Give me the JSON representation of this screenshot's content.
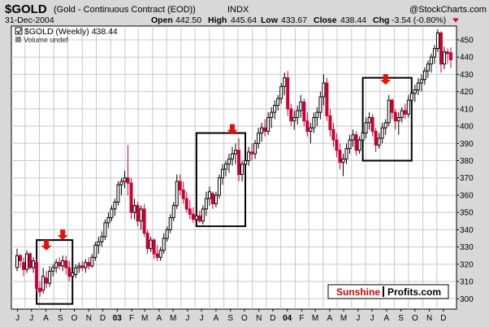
{
  "header": {
    "symbol": "$GOLD",
    "description": "(Gold - Continuous Contract (EOD))",
    "exchange": "INDX",
    "date": "31-Dec-2004",
    "watermark": "@StockCharts.com",
    "open_label": "Open",
    "open_value": "442.50",
    "high_label": "High",
    "high_value": "445.64",
    "low_label": "Low",
    "low_value": "433.67",
    "close_label": "Close",
    "close_value": "438.44",
    "chg_label": "Chg",
    "chg_value": "-3.54 (-0.80%)"
  },
  "legend": {
    "series": "$GOLD (Weekly) 438.44",
    "volume": "Volume undef"
  },
  "brand": {
    "part1": "Sunshine",
    "part2": "Profits.com"
  },
  "colors": {
    "up": "#000000",
    "down": "#cc0033",
    "grid": "#c8c8c8",
    "arrow": "#e8100a",
    "frame": "#000000",
    "background": "#d8d8d8",
    "plot_bg": "#ffffff"
  },
  "chart_data": {
    "type": "candlestick",
    "title": "$GOLD (Weekly) 438.44",
    "timeframe": "weekly",
    "date_range": [
      "2002-06-14",
      "2004-12-31"
    ],
    "y_axis_side": "right",
    "ylim": [
      294,
      458
    ],
    "yticks": [
      300,
      310,
      320,
      330,
      340,
      350,
      360,
      370,
      380,
      390,
      400,
      410,
      420,
      430,
      440,
      450
    ],
    "grid": true,
    "x_tick_labels": [
      "J",
      "J",
      "A",
      "S",
      "O",
      "N",
      "D",
      "03",
      "F",
      "M",
      "A",
      "M",
      "J",
      "J",
      "A",
      "S",
      "O",
      "N",
      "D",
      "04",
      "F",
      "M",
      "A",
      "M",
      "J",
      "J",
      "A",
      "S",
      "O",
      "N",
      "D"
    ],
    "candles": [
      {
        "date": "2002-06-14",
        "open": 318,
        "high": 329,
        "low": 316,
        "close": 325
      },
      {
        "date": "2002-06-21",
        "open": 325,
        "high": 326,
        "low": 318,
        "close": 322
      },
      {
        "date": "2002-06-28",
        "open": 321,
        "high": 324,
        "low": 313,
        "close": 317
      },
      {
        "date": "2002-07-05",
        "open": 317,
        "high": 328,
        "low": 315,
        "close": 326
      },
      {
        "date": "2002-07-12",
        "open": 326,
        "high": 327,
        "low": 317,
        "close": 318
      },
      {
        "date": "2002-07-19",
        "open": 318,
        "high": 324,
        "low": 315,
        "close": 322
      },
      {
        "date": "2002-07-26",
        "open": 321,
        "high": 323,
        "low": 304,
        "close": 306
      },
      {
        "date": "2002-08-02",
        "open": 306,
        "high": 310,
        "low": 301,
        "close": 304
      },
      {
        "date": "2002-08-09",
        "open": 305,
        "high": 318,
        "low": 303,
        "close": 313
      },
      {
        "date": "2002-08-16",
        "open": 312,
        "high": 316,
        "low": 306,
        "close": 309
      },
      {
        "date": "2002-08-23",
        "open": 309,
        "high": 319,
        "low": 307,
        "close": 316
      },
      {
        "date": "2002-08-30",
        "open": 316,
        "high": 320,
        "low": 313,
        "close": 318
      },
      {
        "date": "2002-09-06",
        "open": 318,
        "high": 323,
        "low": 315,
        "close": 321
      },
      {
        "date": "2002-09-13",
        "open": 321,
        "high": 324,
        "low": 317,
        "close": 319
      },
      {
        "date": "2002-09-20",
        "open": 319,
        "high": 325,
        "low": 316,
        "close": 322
      },
      {
        "date": "2002-09-27",
        "open": 322,
        "high": 325,
        "low": 314,
        "close": 318
      },
      {
        "date": "2002-10-04",
        "open": 318,
        "high": 322,
        "low": 310,
        "close": 313
      },
      {
        "date": "2002-10-11",
        "open": 313,
        "high": 317,
        "low": 309,
        "close": 315
      },
      {
        "date": "2002-10-18",
        "open": 314,
        "high": 320,
        "low": 312,
        "close": 318
      },
      {
        "date": "2002-10-25",
        "open": 318,
        "high": 321,
        "low": 315,
        "close": 319
      },
      {
        "date": "2002-11-01",
        "open": 319,
        "high": 322,
        "low": 316,
        "close": 318
      },
      {
        "date": "2002-11-08",
        "open": 318,
        "high": 323,
        "low": 315,
        "close": 321
      },
      {
        "date": "2002-11-15",
        "open": 321,
        "high": 324,
        "low": 317,
        "close": 319
      },
      {
        "date": "2002-11-22",
        "open": 319,
        "high": 326,
        "low": 318,
        "close": 324
      },
      {
        "date": "2002-11-29",
        "open": 324,
        "high": 333,
        "low": 322,
        "close": 331
      },
      {
        "date": "2002-12-06",
        "open": 331,
        "high": 336,
        "low": 326,
        "close": 333
      },
      {
        "date": "2002-12-13",
        "open": 333,
        "high": 339,
        "low": 330,
        "close": 336
      },
      {
        "date": "2002-12-20",
        "open": 336,
        "high": 346,
        "low": 334,
        "close": 344
      },
      {
        "date": "2002-12-27",
        "open": 344,
        "high": 350,
        "low": 341,
        "close": 347
      },
      {
        "date": "2003-01-03",
        "open": 347,
        "high": 354,
        "low": 345,
        "close": 352
      },
      {
        "date": "2003-01-10",
        "open": 352,
        "high": 358,
        "low": 348,
        "close": 356
      },
      {
        "date": "2003-01-17",
        "open": 356,
        "high": 368,
        "low": 354,
        "close": 366
      },
      {
        "date": "2003-01-24",
        "open": 366,
        "high": 370,
        "low": 360,
        "close": 368
      },
      {
        "date": "2003-01-31",
        "open": 368,
        "high": 374,
        "low": 364,
        "close": 370
      },
      {
        "date": "2003-02-07",
        "open": 370,
        "high": 389,
        "low": 360,
        "close": 367
      },
      {
        "date": "2003-02-14",
        "open": 367,
        "high": 370,
        "low": 346,
        "close": 350
      },
      {
        "date": "2003-02-21",
        "open": 350,
        "high": 358,
        "low": 346,
        "close": 354
      },
      {
        "date": "2003-02-28",
        "open": 354,
        "high": 356,
        "low": 342,
        "close": 345
      },
      {
        "date": "2003-03-07",
        "open": 345,
        "high": 354,
        "low": 340,
        "close": 352
      },
      {
        "date": "2003-03-14",
        "open": 352,
        "high": 355,
        "low": 336,
        "close": 338
      },
      {
        "date": "2003-03-21",
        "open": 338,
        "high": 340,
        "low": 326,
        "close": 329
      },
      {
        "date": "2003-03-28",
        "open": 329,
        "high": 336,
        "low": 327,
        "close": 334
      },
      {
        "date": "2003-04-04",
        "open": 334,
        "high": 335,
        "low": 323,
        "close": 326
      },
      {
        "date": "2003-04-11",
        "open": 326,
        "high": 331,
        "low": 322,
        "close": 324
      },
      {
        "date": "2003-04-18",
        "open": 324,
        "high": 330,
        "low": 322,
        "close": 328
      },
      {
        "date": "2003-04-25",
        "open": 328,
        "high": 338,
        "low": 326,
        "close": 335
      },
      {
        "date": "2003-05-02",
        "open": 335,
        "high": 342,
        "low": 333,
        "close": 340
      },
      {
        "date": "2003-05-09",
        "open": 340,
        "high": 349,
        "low": 338,
        "close": 347
      },
      {
        "date": "2003-05-16",
        "open": 347,
        "high": 356,
        "low": 345,
        "close": 354
      },
      {
        "date": "2003-05-23",
        "open": 354,
        "high": 372,
        "low": 352,
        "close": 368
      },
      {
        "date": "2003-05-30",
        "open": 368,
        "high": 372,
        "low": 360,
        "close": 363
      },
      {
        "date": "2003-06-06",
        "open": 363,
        "high": 368,
        "low": 355,
        "close": 358
      },
      {
        "date": "2003-06-13",
        "open": 358,
        "high": 362,
        "low": 350,
        "close": 352
      },
      {
        "date": "2003-06-20",
        "open": 352,
        "high": 357,
        "low": 346,
        "close": 349
      },
      {
        "date": "2003-06-27",
        "open": 349,
        "high": 353,
        "low": 344,
        "close": 346
      },
      {
        "date": "2003-07-04",
        "open": 346,
        "high": 350,
        "low": 343,
        "close": 348
      },
      {
        "date": "2003-07-11",
        "open": 348,
        "high": 351,
        "low": 344,
        "close": 345
      },
      {
        "date": "2003-07-18",
        "open": 345,
        "high": 354,
        "low": 343,
        "close": 352
      },
      {
        "date": "2003-07-25",
        "open": 352,
        "high": 362,
        "low": 348,
        "close": 358
      },
      {
        "date": "2003-08-01",
        "open": 358,
        "high": 365,
        "low": 354,
        "close": 362
      },
      {
        "date": "2003-08-08",
        "open": 361,
        "high": 362,
        "low": 352,
        "close": 355
      },
      {
        "date": "2003-08-15",
        "open": 355,
        "high": 362,
        "low": 353,
        "close": 360
      },
      {
        "date": "2003-08-22",
        "open": 360,
        "high": 372,
        "low": 358,
        "close": 370
      },
      {
        "date": "2003-08-29",
        "open": 370,
        "high": 378,
        "low": 366,
        "close": 375
      },
      {
        "date": "2003-09-05",
        "open": 375,
        "high": 380,
        "low": 371,
        "close": 378
      },
      {
        "date": "2003-09-12",
        "open": 378,
        "high": 384,
        "low": 373,
        "close": 381
      },
      {
        "date": "2003-09-19",
        "open": 381,
        "high": 388,
        "low": 377,
        "close": 384
      },
      {
        "date": "2003-09-26",
        "open": 384,
        "high": 390,
        "low": 378,
        "close": 386
      },
      {
        "date": "2003-10-03",
        "open": 386,
        "high": 393,
        "low": 368,
        "close": 372
      },
      {
        "date": "2003-10-10",
        "open": 372,
        "high": 380,
        "low": 368,
        "close": 378
      },
      {
        "date": "2003-10-17",
        "open": 378,
        "high": 386,
        "low": 374,
        "close": 380
      },
      {
        "date": "2003-10-24",
        "open": 380,
        "high": 388,
        "low": 377,
        "close": 385
      },
      {
        "date": "2003-10-31",
        "open": 385,
        "high": 390,
        "low": 380,
        "close": 384
      },
      {
        "date": "2003-11-07",
        "open": 384,
        "high": 392,
        "low": 381,
        "close": 390
      },
      {
        "date": "2003-11-14",
        "open": 390,
        "high": 399,
        "low": 387,
        "close": 396
      },
      {
        "date": "2003-11-21",
        "open": 396,
        "high": 402,
        "low": 391,
        "close": 399
      },
      {
        "date": "2003-11-28",
        "open": 399,
        "high": 404,
        "low": 394,
        "close": 397
      },
      {
        "date": "2003-12-05",
        "open": 397,
        "high": 408,
        "low": 395,
        "close": 405
      },
      {
        "date": "2003-12-12",
        "open": 405,
        "high": 411,
        "low": 399,
        "close": 408
      },
      {
        "date": "2003-12-19",
        "open": 408,
        "high": 415,
        "low": 404,
        "close": 412
      },
      {
        "date": "2003-12-26",
        "open": 412,
        "high": 418,
        "low": 409,
        "close": 416
      },
      {
        "date": "2004-01-02",
        "open": 416,
        "high": 425,
        "low": 413,
        "close": 423
      },
      {
        "date": "2004-01-09",
        "open": 423,
        "high": 431,
        "low": 418,
        "close": 428
      },
      {
        "date": "2004-01-16",
        "open": 428,
        "high": 432,
        "low": 406,
        "close": 410
      },
      {
        "date": "2004-01-23",
        "open": 410,
        "high": 413,
        "low": 400,
        "close": 403
      },
      {
        "date": "2004-01-30",
        "open": 403,
        "high": 409,
        "low": 398,
        "close": 405
      },
      {
        "date": "2004-02-06",
        "open": 405,
        "high": 412,
        "low": 401,
        "close": 409
      },
      {
        "date": "2004-02-13",
        "open": 409,
        "high": 418,
        "low": 405,
        "close": 414
      },
      {
        "date": "2004-02-20",
        "open": 414,
        "high": 416,
        "low": 400,
        "close": 403
      },
      {
        "date": "2004-02-27",
        "open": 403,
        "high": 408,
        "low": 394,
        "close": 397
      },
      {
        "date": "2004-03-05",
        "open": 397,
        "high": 402,
        "low": 390,
        "close": 399
      },
      {
        "date": "2004-03-12",
        "open": 399,
        "high": 408,
        "low": 396,
        "close": 405
      },
      {
        "date": "2004-03-19",
        "open": 405,
        "high": 411,
        "low": 400,
        "close": 408
      },
      {
        "date": "2004-03-26",
        "open": 408,
        "high": 420,
        "low": 404,
        "close": 417
      },
      {
        "date": "2004-04-02",
        "open": 417,
        "high": 430,
        "low": 412,
        "close": 425
      },
      {
        "date": "2004-04-09",
        "open": 425,
        "high": 428,
        "low": 403,
        "close": 406
      },
      {
        "date": "2004-04-16",
        "open": 406,
        "high": 410,
        "low": 394,
        "close": 398
      },
      {
        "date": "2004-04-23",
        "open": 398,
        "high": 402,
        "low": 388,
        "close": 392
      },
      {
        "date": "2004-04-30",
        "open": 392,
        "high": 396,
        "low": 382,
        "close": 386
      },
      {
        "date": "2004-05-07",
        "open": 386,
        "high": 390,
        "low": 375,
        "close": 379
      },
      {
        "date": "2004-05-14",
        "open": 379,
        "high": 384,
        "low": 371,
        "close": 381
      },
      {
        "date": "2004-05-21",
        "open": 381,
        "high": 390,
        "low": 378,
        "close": 387
      },
      {
        "date": "2004-05-28",
        "open": 387,
        "high": 395,
        "low": 384,
        "close": 392
      },
      {
        "date": "2004-06-04",
        "open": 392,
        "high": 398,
        "low": 388,
        "close": 395
      },
      {
        "date": "2004-06-11",
        "open": 395,
        "high": 397,
        "low": 383,
        "close": 386
      },
      {
        "date": "2004-06-18",
        "open": 386,
        "high": 394,
        "low": 384,
        "close": 392
      },
      {
        "date": "2004-06-25",
        "open": 392,
        "high": 399,
        "low": 389,
        "close": 396
      },
      {
        "date": "2004-07-02",
        "open": 396,
        "high": 405,
        "low": 393,
        "close": 402
      },
      {
        "date": "2004-07-09",
        "open": 402,
        "high": 408,
        "low": 398,
        "close": 405
      },
      {
        "date": "2004-07-16",
        "open": 405,
        "high": 407,
        "low": 394,
        "close": 397
      },
      {
        "date": "2004-07-23",
        "open": 397,
        "high": 399,
        "low": 385,
        "close": 389
      },
      {
        "date": "2004-07-30",
        "open": 389,
        "high": 396,
        "low": 387,
        "close": 393
      },
      {
        "date": "2004-08-06",
        "open": 393,
        "high": 402,
        "low": 390,
        "close": 399
      },
      {
        "date": "2004-08-13",
        "open": 399,
        "high": 404,
        "low": 395,
        "close": 402
      },
      {
        "date": "2004-08-20",
        "open": 402,
        "high": 418,
        "low": 400,
        "close": 415
      },
      {
        "date": "2004-08-27",
        "open": 415,
        "high": 416,
        "low": 404,
        "close": 408
      },
      {
        "date": "2004-09-03",
        "open": 408,
        "high": 410,
        "low": 398,
        "close": 403
      },
      {
        "date": "2004-09-10",
        "open": 403,
        "high": 408,
        "low": 395,
        "close": 405
      },
      {
        "date": "2004-09-17",
        "open": 405,
        "high": 411,
        "low": 402,
        "close": 409
      },
      {
        "date": "2004-09-24",
        "open": 409,
        "high": 413,
        "low": 404,
        "close": 407
      },
      {
        "date": "2004-10-01",
        "open": 407,
        "high": 418,
        "low": 405,
        "close": 415
      },
      {
        "date": "2004-10-08",
        "open": 415,
        "high": 422,
        "low": 411,
        "close": 419
      },
      {
        "date": "2004-10-15",
        "open": 419,
        "high": 424,
        "low": 414,
        "close": 421
      },
      {
        "date": "2004-10-22",
        "open": 421,
        "high": 428,
        "low": 418,
        "close": 425
      },
      {
        "date": "2004-10-29",
        "open": 425,
        "high": 430,
        "low": 420,
        "close": 427
      },
      {
        "date": "2004-11-05",
        "open": 427,
        "high": 434,
        "low": 424,
        "close": 432
      },
      {
        "date": "2004-11-12",
        "open": 432,
        "high": 438,
        "low": 428,
        "close": 436
      },
      {
        "date": "2004-11-19",
        "open": 436,
        "high": 442,
        "low": 431,
        "close": 440
      },
      {
        "date": "2004-11-26",
        "open": 440,
        "high": 447,
        "low": 436,
        "close": 445
      },
      {
        "date": "2004-12-03",
        "open": 445,
        "high": 456,
        "low": 443,
        "close": 454
      },
      {
        "date": "2004-12-10",
        "open": 454,
        "high": 455,
        "low": 431,
        "close": 436
      },
      {
        "date": "2004-12-17",
        "open": 436,
        "high": 446,
        "low": 433,
        "close": 443
      },
      {
        "date": "2004-12-24",
        "open": 443,
        "high": 445,
        "low": 436,
        "close": 442
      },
      {
        "date": "2004-12-31",
        "open": 442.5,
        "high": 445.64,
        "low": 433.67,
        "close": 438.44
      }
    ],
    "annotation_boxes": [
      {
        "from": "2002-08-02",
        "to": "2002-10-04",
        "low": 297,
        "high": 334
      },
      {
        "from": "2003-07-11",
        "to": "2003-10-10",
        "low": 342,
        "high": 396
      },
      {
        "from": "2004-07-02",
        "to": "2004-10-01",
        "low": 380,
        "high": 428
      }
    ],
    "annotation_arrows": [
      {
        "date": "2002-08-16",
        "value": 328
      },
      {
        "date": "2002-09-20",
        "value": 334
      },
      {
        "date": "2003-09-19",
        "value": 395
      },
      {
        "date": "2004-08-13",
        "value": 424
      }
    ]
  }
}
